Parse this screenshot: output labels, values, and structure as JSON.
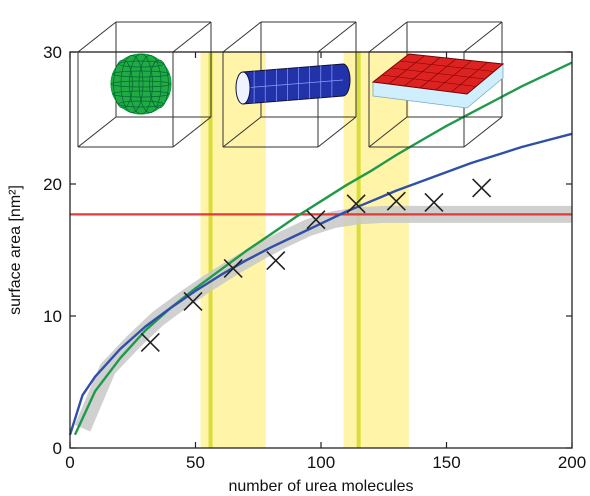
{
  "chart_data": {
    "type": "line",
    "xlabel": "number of urea molecules",
    "ylabel": "surface area [nm²]",
    "xlim": [
      0,
      200
    ],
    "ylim": [
      0,
      30
    ],
    "x_ticks": [
      "0",
      "50",
      "100",
      "150",
      "200"
    ],
    "y_ticks": [
      "0",
      "10",
      "20",
      "30"
    ],
    "grid": false,
    "shaded_bands": [
      {
        "from": 52,
        "to": 78,
        "center": 56,
        "color": "#fff4a8",
        "center_color": "#d8dd3a"
      },
      {
        "from": 109,
        "to": 135,
        "center": 115,
        "color": "#fff4a8",
        "center_color": "#d8dd3a"
      }
    ],
    "series": [
      {
        "style": "curve",
        "color": "#1f9a4a",
        "x": [
          2,
          10,
          20,
          30,
          40,
          50,
          60,
          70,
          80,
          90,
          100,
          110,
          120,
          130,
          140,
          150,
          160,
          170,
          180,
          190,
          200
        ],
        "y": [
          1.0,
          4.3,
          6.8,
          8.9,
          10.6,
          12.1,
          13.5,
          14.9,
          16.2,
          17.5,
          18.7,
          19.9,
          21.0,
          22.2,
          23.3,
          24.4,
          25.4,
          26.4,
          27.4,
          28.3,
          29.2
        ]
      },
      {
        "style": "curve",
        "color": "#2f4fa8",
        "x": [
          0,
          5,
          10,
          20,
          30,
          40,
          50,
          60,
          70,
          80,
          90,
          100,
          110,
          120,
          130,
          140,
          150,
          160,
          170,
          180,
          190,
          200
        ],
        "y": [
          1.0,
          4.0,
          5.4,
          7.5,
          9.2,
          10.6,
          11.9,
          13.1,
          14.2,
          15.2,
          16.1,
          17.0,
          17.9,
          18.7,
          19.5,
          20.2,
          20.9,
          21.6,
          22.2,
          22.8,
          23.3,
          23.8
        ]
      },
      {
        "style": "horizontal",
        "color": "#e03a3a",
        "y": 17.7
      },
      {
        "style": "band",
        "color": "#c8c8c8",
        "x": [
          5,
          15,
          25,
          35,
          45,
          55,
          65,
          75,
          85,
          95,
          105,
          115,
          125,
          140,
          160,
          180,
          200
        ],
        "y": [
          1.5,
          6.0,
          8.0,
          9.8,
          11.2,
          12.5,
          13.7,
          14.8,
          15.8,
          16.7,
          17.3,
          17.6,
          17.7,
          17.7,
          17.7,
          17.7,
          17.7
        ]
      },
      {
        "style": "markers",
        "marker": "x",
        "color": "#222222",
        "x": [
          32,
          49,
          65,
          82,
          98,
          114,
          130,
          145,
          164
        ],
        "y": [
          8.0,
          11.1,
          13.6,
          14.2,
          17.3,
          18.5,
          18.7,
          18.6,
          19.7
        ]
      }
    ],
    "insets": [
      {
        "shape": "sphere",
        "color": "#22aa44",
        "near_x": 20
      },
      {
        "shape": "cylinder",
        "color": "#2233aa",
        "near_x": 75
      },
      {
        "shape": "slab",
        "color": "#dd2222",
        "near_x": 125
      }
    ]
  }
}
